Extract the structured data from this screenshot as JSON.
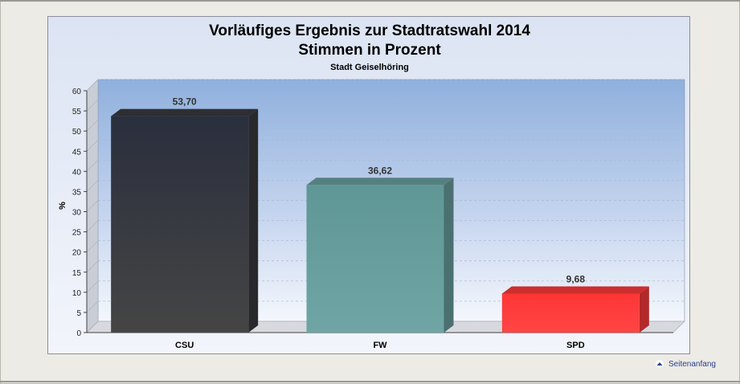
{
  "chart_data": {
    "type": "bar",
    "title": "Vorläufiges Ergebnis zur Stadtratswahl 2014",
    "subtitle": "Stimmen in Prozent",
    "caption": "Stadt Geiselhöring",
    "ylabel": "%",
    "xlabel": "",
    "ylim": [
      0,
      60
    ],
    "yticks": [
      0,
      5,
      10,
      15,
      20,
      25,
      30,
      35,
      40,
      45,
      50,
      55,
      60
    ],
    "categories": [
      "CSU",
      "FW",
      "SPD"
    ],
    "values": [
      53.7,
      36.62,
      9.68
    ],
    "value_labels": [
      "53,70",
      "36,62",
      "9,68"
    ],
    "colors": [
      "#3a3a3e",
      "#6aa0a0",
      "#ff3a3a"
    ],
    "grid": true,
    "legend": "none"
  },
  "footer": {
    "link_label": "Seitenanfang",
    "icon": "arrow-up-icon"
  }
}
